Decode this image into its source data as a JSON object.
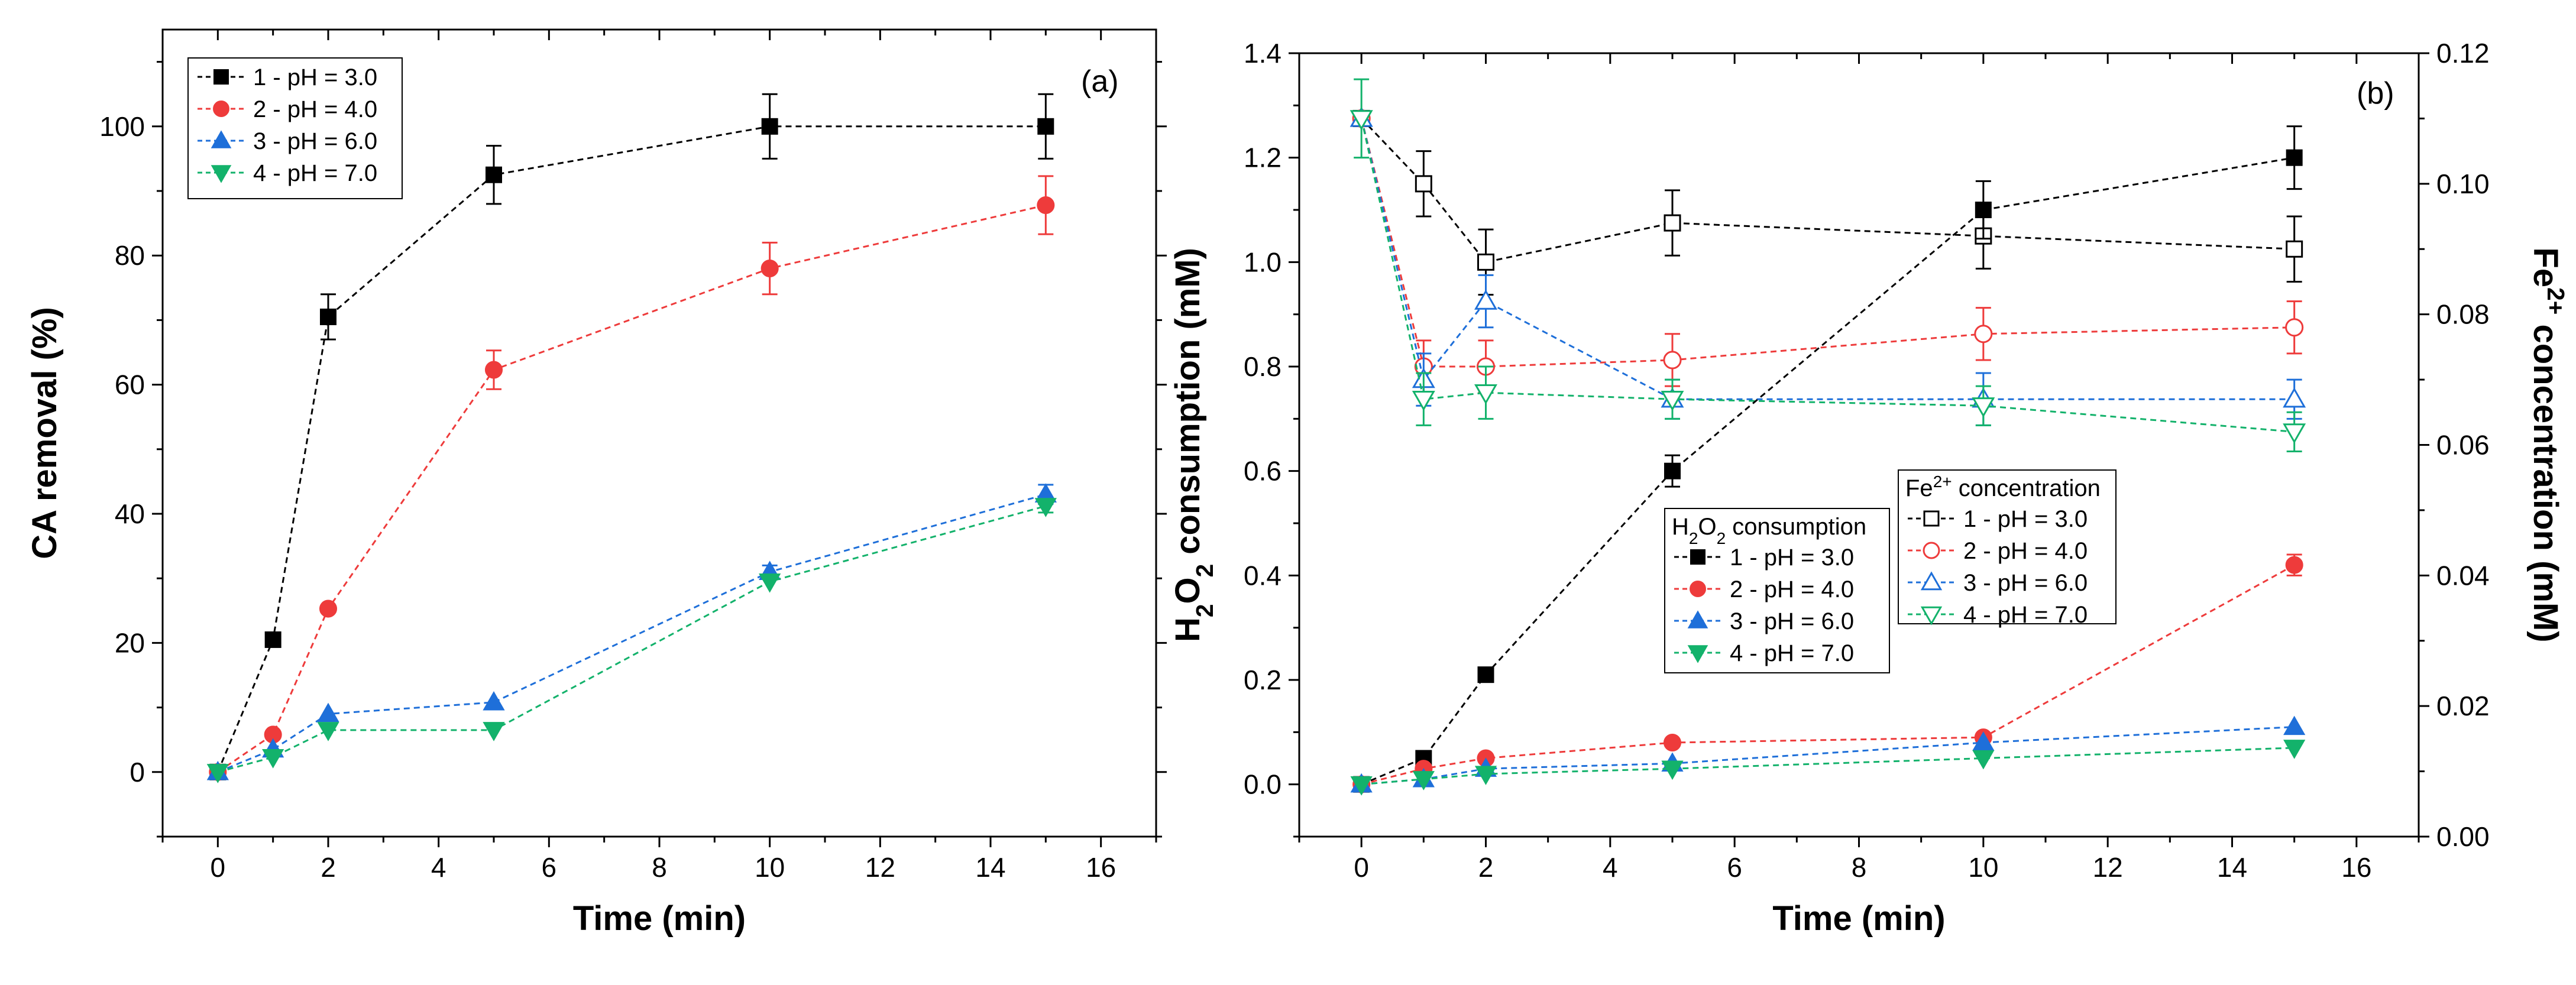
{
  "chart_data": [
    {
      "type": "scatter",
      "panel_label": "(a)",
      "xlabel": "Time (min)",
      "ylabel": "CA removal (%)",
      "xlim": [
        -1,
        17
      ],
      "ylim": [
        -10,
        115
      ],
      "xticks": [
        "0",
        "2",
        "4",
        "6",
        "8",
        "10",
        "12",
        "14",
        "16"
      ],
      "yticks": [
        "0",
        "20",
        "40",
        "60",
        "80",
        "100"
      ],
      "x": [
        0,
        1,
        2,
        5,
        10,
        15
      ],
      "series": [
        {
          "name": "1 - pH = 3.0",
          "color": "#000000",
          "marker": "square",
          "filled": true,
          "values": [
            0,
            20.5,
            70.5,
            92.5,
            100,
            100
          ],
          "errors": [
            0,
            0,
            3.5,
            4.5,
            5,
            5
          ]
        },
        {
          "name": "2 - pH = 4.0",
          "color": "#ee3b3b",
          "marker": "circle",
          "filled": true,
          "values": [
            0,
            5.8,
            25.3,
            62.3,
            78,
            87.8
          ],
          "errors": [
            0,
            0,
            0,
            3,
            4,
            4.5
          ]
        },
        {
          "name": "3 - pH = 6.0",
          "color": "#1e6fd9",
          "marker": "triangle-up",
          "filled": true,
          "values": [
            0,
            3.5,
            9,
            10.8,
            31,
            43
          ],
          "errors": [
            0,
            0,
            0,
            0,
            1,
            1.5
          ]
        },
        {
          "name": "4 - pH = 7.0",
          "color": "#13b26b",
          "marker": "triangle-down",
          "filled": true,
          "values": [
            0,
            2.3,
            6.5,
            6.5,
            29.5,
            41.2
          ],
          "errors": [
            0,
            0,
            0,
            0,
            0,
            1
          ]
        }
      ]
    },
    {
      "type": "scatter",
      "panel_label": "(b)",
      "xlabel": "Time (min)",
      "ylabel_left_parts": [
        "H",
        "2",
        "O",
        "2",
        " consumption (mM)"
      ],
      "ylabel_right_parts": [
        "Fe",
        "2+",
        " concentration (mM)"
      ],
      "xlim": [
        -1,
        17
      ],
      "ylim_left": [
        -0.1,
        1.4
      ],
      "ylim_right": [
        0,
        0.12
      ],
      "xticks": [
        "0",
        "2",
        "4",
        "6",
        "8",
        "10",
        "12",
        "14",
        "16"
      ],
      "yticks_left": [
        "0.0",
        "0.2",
        "0.4",
        "0.6",
        "0.8",
        "1.0",
        "1.2",
        "1.4"
      ],
      "yticks_right": [
        "0.00",
        "0.02",
        "0.04",
        "0.06",
        "0.08",
        "0.10",
        "0.12"
      ],
      "x": [
        0,
        1,
        2,
        5,
        10,
        15
      ],
      "legend_left_title_parts": [
        "H",
        "2",
        "O",
        "2",
        " consumption"
      ],
      "legend_right_title_parts": [
        "Fe",
        "2+",
        " concentration"
      ],
      "series_left": [
        {
          "name": "1 - pH = 3.0",
          "color": "#000000",
          "marker": "square",
          "filled": true,
          "values": [
            0,
            0.05,
            0.21,
            0.6,
            1.1,
            1.2
          ],
          "errors": [
            0,
            0,
            0,
            0.03,
            0.055,
            0.06
          ]
        },
        {
          "name": "2 - pH = 4.0",
          "color": "#ee3b3b",
          "marker": "circle",
          "filled": true,
          "values": [
            0,
            0.03,
            0.05,
            0.08,
            0.09,
            0.42
          ],
          "errors": [
            0,
            0,
            0,
            0,
            0,
            0.02
          ]
        },
        {
          "name": "3 - pH = 6.0",
          "color": "#1e6fd9",
          "marker": "triangle-up",
          "filled": true,
          "values": [
            0,
            0.01,
            0.03,
            0.04,
            0.08,
            0.11
          ],
          "errors": [
            0,
            0,
            0,
            0,
            0,
            0
          ]
        },
        {
          "name": "4 - pH = 7.0",
          "color": "#13b26b",
          "marker": "triangle-down",
          "filled": true,
          "values": [
            0,
            0.01,
            0.02,
            0.03,
            0.05,
            0.07
          ],
          "errors": [
            0,
            0,
            0,
            0,
            0,
            0
          ]
        }
      ],
      "series_right": [
        {
          "name": "1 - pH = 3.0",
          "color": "#000000",
          "marker": "square",
          "filled": false,
          "values": [
            0.11,
            0.1,
            0.088,
            0.094,
            0.092,
            0.09
          ],
          "errors": [
            0,
            0.005,
            0.005,
            0.005,
            0.005,
            0.005
          ]
        },
        {
          "name": "2 - pH = 4.0",
          "color": "#ee3b3b",
          "marker": "circle",
          "filled": false,
          "values": [
            0.11,
            0.072,
            0.072,
            0.073,
            0.077,
            0.078
          ],
          "errors": [
            0,
            0.004,
            0.004,
            0.004,
            0.004,
            0.004
          ]
        },
        {
          "name": "3 - pH = 6.0",
          "color": "#1e6fd9",
          "marker": "triangle-up",
          "filled": false,
          "values": [
            0.11,
            0.07,
            0.082,
            0.067,
            0.067,
            0.067
          ],
          "errors": [
            0,
            0.004,
            0.004,
            0.003,
            0.004,
            0.003
          ]
        },
        {
          "name": "4 - pH = 7.0",
          "color": "#13b26b",
          "marker": "triangle-down",
          "filled": false,
          "values": [
            0.11,
            0.067,
            0.068,
            0.067,
            0.066,
            0.062
          ],
          "errors": [
            0.006,
            0.004,
            0.004,
            0.003,
            0.003,
            0.003
          ]
        }
      ]
    }
  ]
}
